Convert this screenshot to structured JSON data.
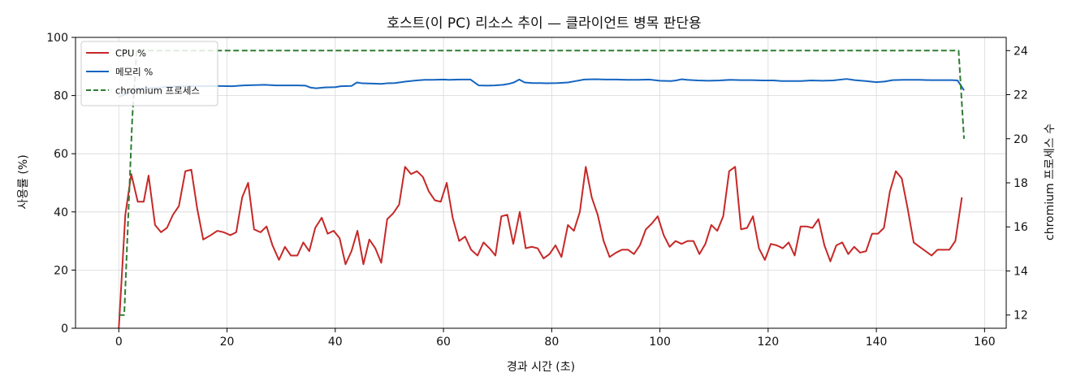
{
  "chart_data": {
    "type": "line",
    "title": "호스트(이 PC) 리소스 추이 — 클라이언트 병목 판단용",
    "xlabel": "경과 시간 (초)",
    "ylabel": "사용률 (%)",
    "ylabel_right": "chromium 프로세스 수",
    "xlim": [
      -8,
      164
    ],
    "ylim": [
      0,
      100
    ],
    "ylim_right": [
      11.4,
      24.6
    ],
    "x_ticks": [
      "0",
      "20",
      "40",
      "60",
      "80",
      "100",
      "120",
      "140",
      "160"
    ],
    "y_ticks": [
      "0",
      "20",
      "40",
      "60",
      "80",
      "100"
    ],
    "y_ticks_right": [
      "12",
      "14",
      "16",
      "18",
      "20",
      "22",
      "24"
    ],
    "grid": true,
    "legend_position": "top-left",
    "series": [
      {
        "name": "CPU %",
        "axis": "left",
        "color": "#c62828",
        "style": "solid",
        "points": [
          [
            0,
            0
          ],
          [
            1.2,
            39
          ],
          [
            2.3,
            53
          ],
          [
            3.5,
            43.5
          ],
          [
            4.6,
            43.5
          ],
          [
            5.5,
            52.5
          ],
          [
            6.7,
            35.5
          ],
          [
            7.8,
            33
          ],
          [
            8.9,
            34.5
          ],
          [
            10,
            39
          ],
          [
            11.1,
            42
          ],
          [
            12.3,
            54
          ],
          [
            13.4,
            54.5
          ],
          [
            14.5,
            41
          ],
          [
            15.6,
            30.5
          ],
          [
            17,
            32
          ],
          [
            18.2,
            33.5
          ],
          [
            19.4,
            33
          ],
          [
            20.6,
            32
          ],
          [
            21.7,
            33
          ],
          [
            22.8,
            45
          ],
          [
            23.9,
            50
          ],
          [
            25,
            34
          ],
          [
            26.2,
            33
          ],
          [
            27.3,
            35
          ],
          [
            28.4,
            28.5
          ],
          [
            29.6,
            23.5
          ],
          [
            30.7,
            28
          ],
          [
            31.8,
            25
          ],
          [
            33,
            25
          ],
          [
            34.1,
            29.5
          ],
          [
            35.2,
            26.5
          ],
          [
            36.3,
            34.5
          ],
          [
            37.5,
            38
          ],
          [
            38.6,
            32.5
          ],
          [
            39.7,
            33.5
          ],
          [
            40.8,
            31
          ],
          [
            41.9,
            22
          ],
          [
            43,
            26.5
          ],
          [
            44.1,
            33.5
          ],
          [
            45.2,
            22
          ],
          [
            46.3,
            30.5
          ],
          [
            47.4,
            27.5
          ],
          [
            48.5,
            22.5
          ],
          [
            49.6,
            37.5
          ],
          [
            50.7,
            39.5
          ],
          [
            51.8,
            42.5
          ],
          [
            52.9,
            55.5
          ],
          [
            54,
            53
          ],
          [
            55.1,
            54
          ],
          [
            56.2,
            52
          ],
          [
            57.3,
            47
          ],
          [
            58.4,
            44
          ],
          [
            59.5,
            43.5
          ],
          [
            60.6,
            50
          ],
          [
            61.7,
            38
          ],
          [
            62.9,
            30
          ],
          [
            64,
            31.5
          ],
          [
            65.1,
            27
          ],
          [
            66.3,
            25
          ],
          [
            67.4,
            29.5
          ],
          [
            68.5,
            27.5
          ],
          [
            69.6,
            25
          ],
          [
            70.7,
            38.5
          ],
          [
            71.8,
            39
          ],
          [
            72.9,
            29
          ],
          [
            74.1,
            40
          ],
          [
            75.2,
            27.5
          ],
          [
            76.3,
            28
          ],
          [
            77.4,
            27.5
          ],
          [
            78.5,
            24
          ],
          [
            79.6,
            25.5
          ],
          [
            80.7,
            28.5
          ],
          [
            81.8,
            24.5
          ],
          [
            83,
            35.5
          ],
          [
            84.1,
            33.5
          ],
          [
            85.2,
            40
          ],
          [
            86.3,
            55.5
          ],
          [
            87.4,
            45
          ],
          [
            88.5,
            39
          ],
          [
            89.6,
            30
          ],
          [
            90.7,
            24.5
          ],
          [
            91.9,
            26
          ],
          [
            93,
            27
          ],
          [
            94.1,
            27
          ],
          [
            95.2,
            25.5
          ],
          [
            96.3,
            28.5
          ],
          [
            97.4,
            34
          ],
          [
            98.5,
            36
          ],
          [
            99.6,
            38.5
          ],
          [
            100.7,
            32
          ],
          [
            101.8,
            28
          ],
          [
            102.9,
            30
          ],
          [
            104,
            29
          ],
          [
            105.1,
            30
          ],
          [
            106.2,
            30
          ],
          [
            107.3,
            25.5
          ],
          [
            108.4,
            29
          ],
          [
            109.5,
            35.5
          ],
          [
            110.6,
            33.5
          ],
          [
            111.7,
            38.5
          ],
          [
            112.8,
            54
          ],
          [
            113.9,
            55.5
          ],
          [
            115,
            34
          ],
          [
            116.1,
            34.5
          ],
          [
            117.2,
            38.5
          ],
          [
            118.3,
            27.5
          ],
          [
            119.4,
            23.5
          ],
          [
            120.5,
            29
          ],
          [
            121.6,
            28.5
          ],
          [
            122.7,
            27.5
          ],
          [
            123.8,
            29.5
          ],
          [
            124.9,
            25
          ],
          [
            126,
            35
          ],
          [
            127.1,
            35
          ],
          [
            128.2,
            34.5
          ],
          [
            129.3,
            37.5
          ],
          [
            130.4,
            28.5
          ],
          [
            131.5,
            23
          ],
          [
            132.6,
            28.5
          ],
          [
            133.7,
            29.5
          ],
          [
            134.8,
            25.5
          ],
          [
            135.9,
            28
          ],
          [
            137,
            26
          ],
          [
            138.1,
            26.5
          ],
          [
            139.2,
            32.5
          ],
          [
            140.3,
            32.5
          ],
          [
            141.4,
            34.5
          ],
          [
            142.5,
            47
          ],
          [
            143.6,
            54
          ],
          [
            144.7,
            51.5
          ],
          [
            145.8,
            41
          ],
          [
            146.9,
            29.5
          ],
          [
            148,
            28
          ],
          [
            149.1,
            26.5
          ],
          [
            150.2,
            25
          ],
          [
            151.3,
            27
          ],
          [
            152.4,
            27
          ],
          [
            153.5,
            27
          ],
          [
            154.6,
            30
          ],
          [
            155.8,
            45
          ]
        ]
      },
      {
        "name": "메모리 %",
        "axis": "left",
        "color": "#1565c0",
        "style": "solid",
        "points": [
          [
            0,
            79.5
          ],
          [
            1.2,
            80.5
          ],
          [
            2.3,
            81.5
          ],
          [
            3.5,
            82.5
          ],
          [
            5,
            82.5
          ],
          [
            7,
            82.7
          ],
          [
            9,
            83
          ],
          [
            12,
            83.2
          ],
          [
            15,
            83.2
          ],
          [
            18,
            83.3
          ],
          [
            21,
            83.2
          ],
          [
            23,
            83.5
          ],
          [
            25,
            83.6
          ],
          [
            27,
            83.7
          ],
          [
            29,
            83.5
          ],
          [
            31,
            83.5
          ],
          [
            33,
            83.5
          ],
          [
            34.5,
            83.4
          ],
          [
            35.5,
            82.7
          ],
          [
            36.5,
            82.5
          ],
          [
            38,
            82.8
          ],
          [
            40,
            82.9
          ],
          [
            41,
            83.2
          ],
          [
            43,
            83.3
          ],
          [
            44,
            84.5
          ],
          [
            45,
            84.2
          ],
          [
            47,
            84.1
          ],
          [
            48.5,
            84
          ],
          [
            49.5,
            84.2
          ],
          [
            51,
            84.3
          ],
          [
            53,
            84.8
          ],
          [
            55,
            85.2
          ],
          [
            56.5,
            85.4
          ],
          [
            58,
            85.4
          ],
          [
            60,
            85.5
          ],
          [
            61,
            85.4
          ],
          [
            63,
            85.5
          ],
          [
            65,
            85.5
          ],
          [
            66.5,
            83.5
          ],
          [
            68,
            83.4
          ],
          [
            69.5,
            83.5
          ],
          [
            71,
            83.7
          ],
          [
            72,
            84
          ],
          [
            73,
            84.5
          ],
          [
            74,
            85.5
          ],
          [
            75,
            84.5
          ],
          [
            76.5,
            84.3
          ],
          [
            78,
            84.3
          ],
          [
            79,
            84.2
          ],
          [
            81,
            84.3
          ],
          [
            83,
            84.5
          ],
          [
            84.5,
            85
          ],
          [
            86,
            85.5
          ],
          [
            88,
            85.6
          ],
          [
            90,
            85.5
          ],
          [
            92,
            85.5
          ],
          [
            94,
            85.4
          ],
          [
            96,
            85.4
          ],
          [
            98,
            85.5
          ],
          [
            100,
            85.1
          ],
          [
            102,
            85
          ],
          [
            103,
            85.2
          ],
          [
            104,
            85.6
          ],
          [
            105,
            85.4
          ],
          [
            107,
            85.2
          ],
          [
            109,
            85.1
          ],
          [
            111,
            85.2
          ],
          [
            113,
            85.4
          ],
          [
            115,
            85.3
          ],
          [
            117,
            85.3
          ],
          [
            119,
            85.2
          ],
          [
            121,
            85.2
          ],
          [
            122.5,
            85
          ],
          [
            124,
            85
          ],
          [
            126,
            85
          ],
          [
            128,
            85.2
          ],
          [
            130,
            85.1
          ],
          [
            132,
            85.2
          ],
          [
            134.5,
            85.7
          ],
          [
            136,
            85.3
          ],
          [
            138,
            85
          ],
          [
            140,
            84.6
          ],
          [
            141.5,
            84.8
          ],
          [
            143,
            85.3
          ],
          [
            145,
            85.4
          ],
          [
            148,
            85.4
          ],
          [
            150,
            85.3
          ],
          [
            152,
            85.3
          ],
          [
            154,
            85.3
          ],
          [
            155,
            85.2
          ],
          [
            156.2,
            81.8
          ]
        ]
      },
      {
        "name": "chromium 프로세스",
        "axis": "right",
        "color": "#2e7d32",
        "style": "dashed",
        "points": [
          [
            0,
            12
          ],
          [
            1,
            12
          ],
          [
            2.5,
            21
          ],
          [
            3.3,
            24
          ],
          [
            155.2,
            24
          ],
          [
            156.2,
            20
          ]
        ]
      }
    ]
  }
}
